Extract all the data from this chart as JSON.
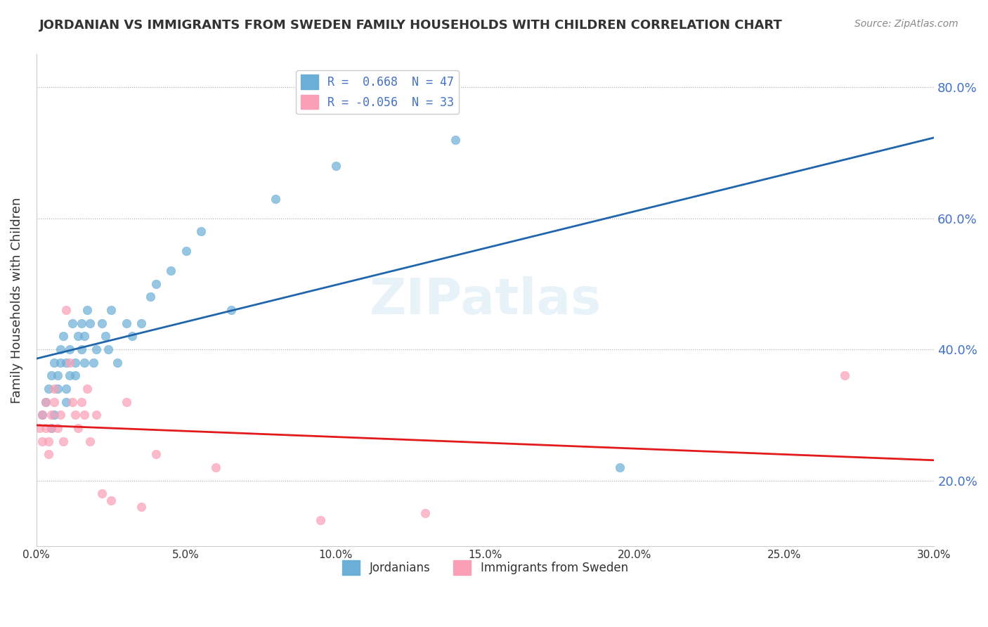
{
  "title": "JORDANIAN VS IMMIGRANTS FROM SWEDEN FAMILY HOUSEHOLDS WITH CHILDREN CORRELATION CHART",
  "source": "Source: ZipAtlas.com",
  "xlabel_bottom": "",
  "ylabel": "Family Households with Children",
  "x_min": 0.0,
  "x_max": 0.3,
  "y_min": 0.1,
  "y_max": 0.85,
  "x_ticks": [
    0.0,
    0.05,
    0.1,
    0.15,
    0.2,
    0.25,
    0.3
  ],
  "y_ticks": [
    0.2,
    0.4,
    0.6,
    0.8
  ],
  "y_tick_labels": [
    "20.0%",
    "40.0%",
    "60.0%",
    "80.0%"
  ],
  "x_tick_labels": [
    "0.0%",
    "5.0%",
    "10.0%",
    "15.0%",
    "20.0%",
    "25.0%",
    "30.0%"
  ],
  "legend_blue_label": "R =  0.668  N = 47",
  "legend_pink_label": "R = -0.056  N = 33",
  "legend_jordanians": "Jordanians",
  "legend_immigrants": "Immigrants from Sweden",
  "watermark": "ZIPatlas",
  "blue_color": "#6baed6",
  "pink_color": "#fa9fb5",
  "blue_line_color": "#2166ac",
  "pink_line_color": "#e31a1c",
  "blue_R": 0.668,
  "blue_N": 47,
  "pink_R": -0.056,
  "pink_N": 33,
  "jordanians_x": [
    0.002,
    0.003,
    0.004,
    0.005,
    0.005,
    0.006,
    0.006,
    0.007,
    0.007,
    0.008,
    0.008,
    0.009,
    0.01,
    0.01,
    0.01,
    0.011,
    0.011,
    0.012,
    0.013,
    0.013,
    0.014,
    0.015,
    0.015,
    0.016,
    0.016,
    0.017,
    0.018,
    0.019,
    0.02,
    0.022,
    0.023,
    0.024,
    0.025,
    0.027,
    0.03,
    0.032,
    0.035,
    0.038,
    0.04,
    0.045,
    0.05,
    0.055,
    0.065,
    0.08,
    0.1,
    0.14,
    0.195
  ],
  "jordanians_y": [
    0.3,
    0.32,
    0.34,
    0.36,
    0.28,
    0.38,
    0.3,
    0.36,
    0.34,
    0.4,
    0.38,
    0.42,
    0.32,
    0.38,
    0.34,
    0.4,
    0.36,
    0.44,
    0.38,
    0.36,
    0.42,
    0.4,
    0.44,
    0.38,
    0.42,
    0.46,
    0.44,
    0.38,
    0.4,
    0.44,
    0.42,
    0.4,
    0.46,
    0.38,
    0.44,
    0.42,
    0.44,
    0.48,
    0.5,
    0.52,
    0.55,
    0.58,
    0.46,
    0.63,
    0.68,
    0.72,
    0.22
  ],
  "immigrants_x": [
    0.001,
    0.002,
    0.002,
    0.003,
    0.003,
    0.004,
    0.004,
    0.005,
    0.005,
    0.006,
    0.006,
    0.007,
    0.008,
    0.009,
    0.01,
    0.011,
    0.012,
    0.013,
    0.014,
    0.015,
    0.016,
    0.017,
    0.018,
    0.02,
    0.022,
    0.025,
    0.03,
    0.035,
    0.04,
    0.06,
    0.095,
    0.13,
    0.27
  ],
  "immigrants_y": [
    0.28,
    0.3,
    0.26,
    0.32,
    0.28,
    0.24,
    0.26,
    0.3,
    0.28,
    0.32,
    0.34,
    0.28,
    0.3,
    0.26,
    0.46,
    0.38,
    0.32,
    0.3,
    0.28,
    0.32,
    0.3,
    0.34,
    0.26,
    0.3,
    0.18,
    0.17,
    0.32,
    0.16,
    0.24,
    0.22,
    0.14,
    0.15,
    0.36
  ]
}
